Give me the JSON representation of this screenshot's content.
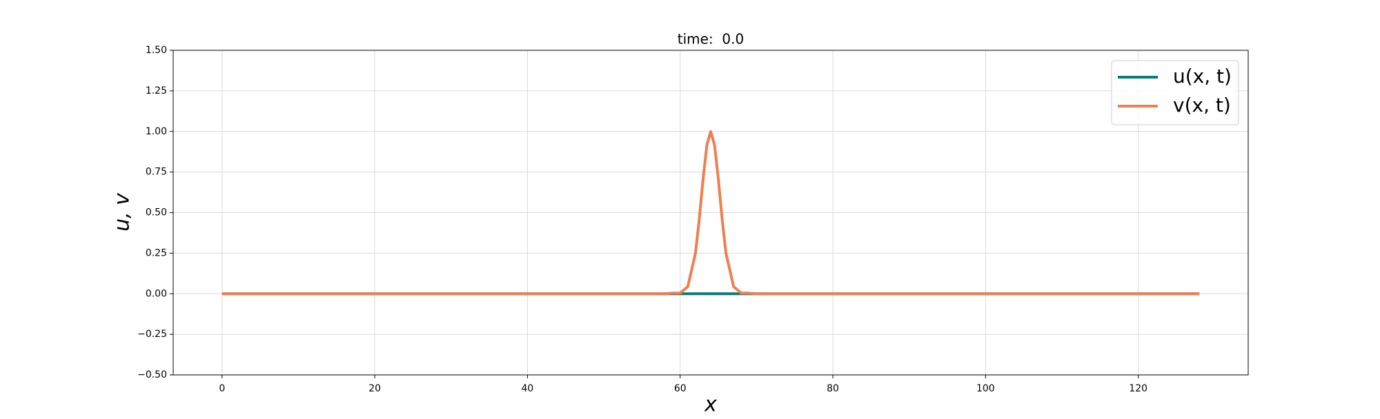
{
  "chart_data": {
    "type": "line",
    "title": "time:  0.0",
    "x_label": "x",
    "y_label": "u, v",
    "x": [
      0,
      56,
      58,
      59,
      60,
      61,
      62,
      62.5,
      63,
      63.5,
      64,
      64.5,
      65,
      65.5,
      66,
      67,
      68,
      69,
      70,
      72,
      128
    ],
    "series": [
      {
        "name": "u(x, t)",
        "color": "#0b7b78",
        "values": [
          0,
          0,
          0,
          0,
          0,
          0,
          0,
          0,
          0,
          0,
          0,
          0,
          0,
          0,
          0,
          0,
          0,
          0,
          0,
          0,
          0
        ]
      },
      {
        "name": "v(x, t)",
        "color": "#ef7e50",
        "values": [
          0,
          0,
          0,
          0.004,
          0.004,
          0.044,
          0.249,
          0.458,
          0.707,
          0.917,
          1,
          0.917,
          0.707,
          0.458,
          0.249,
          0.044,
          0.004,
          0.004,
          0,
          0,
          0
        ]
      }
    ],
    "xlim": [
      -6.4,
      134.4
    ],
    "xticks": [
      0,
      20,
      40,
      60,
      80,
      100,
      120
    ],
    "ylim": [
      -0.5,
      1.5
    ],
    "yticks": [
      {
        "value": -0.5,
        "label": "−0.50"
      },
      {
        "value": -0.25,
        "label": "−0.25"
      },
      {
        "value": 0,
        "label": "0.00"
      },
      {
        "value": 0.25,
        "label": "0.25"
      },
      {
        "value": 0.5,
        "label": "0.50"
      },
      {
        "value": 0.75,
        "label": "0.75"
      },
      {
        "value": 1,
        "label": "1.00"
      },
      {
        "value": 1.25,
        "label": "1.25"
      },
      {
        "value": 1.5,
        "label": "1.50"
      }
    ],
    "grid": true,
    "legend": "upper right"
  }
}
